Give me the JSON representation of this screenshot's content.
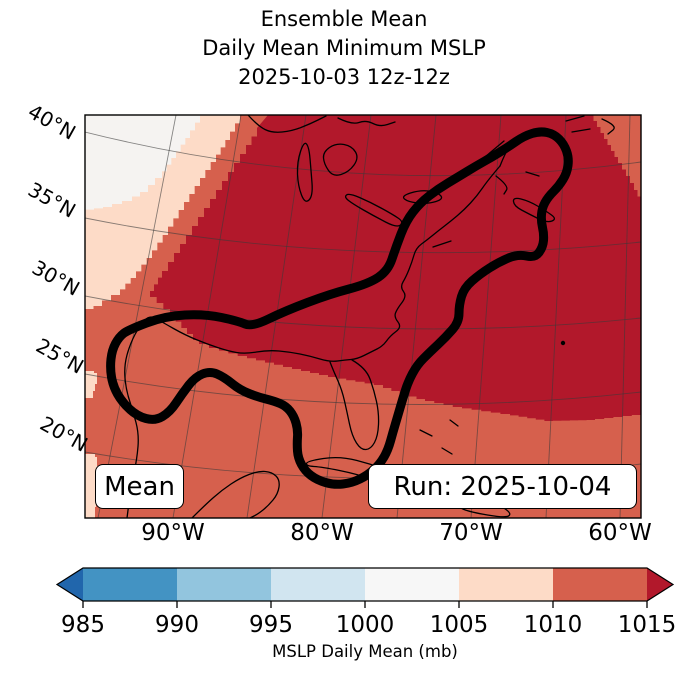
{
  "title": {
    "line1": "Ensemble Mean",
    "line2": "Daily Mean Minimum MSLP",
    "line3": "2025-10-03 12z-12z"
  },
  "map": {
    "lat_labels": [
      "40°N",
      "35°N",
      "30°N",
      "25°N",
      "20°N"
    ],
    "lon_labels": [
      "90°W",
      "80°W",
      "70°W",
      "60°W"
    ],
    "legend_left": "Mean",
    "legend_right": "Run: 2025-10-04",
    "fill_colors": {
      "over_1015": "#b2182b",
      "band_1010_1015": "#d6604d",
      "band_1005_1010": "#fddbc7",
      "band_1000_1005": "#f5f3f1"
    },
    "contour_color": "#000000",
    "gridline_color": "#3a3a3a",
    "coastline_color": "#000000"
  },
  "colorbar": {
    "ticks": [
      "985",
      "990",
      "995",
      "1000",
      "1005",
      "1010",
      "1015"
    ],
    "segment_colors": [
      "#4393c3",
      "#92c5de",
      "#d1e5f0",
      "#f7f7f7",
      "#fddbc7",
      "#d6604d"
    ],
    "under_color": "#2166ac",
    "over_color": "#b2182b",
    "label": "MSLP Daily Mean (mb)"
  },
  "chart_data": {
    "type": "heatmap",
    "subtype": "filled-contour-weather-map",
    "title": "Ensemble Mean | Daily Mean Minimum MSLP | 2025-10-03 12z-12z",
    "colorbar_label": "MSLP Daily Mean (mb)",
    "colorbar_levels_mb": [
      985,
      990,
      995,
      1000,
      1005,
      1010,
      1015
    ],
    "colorbar_colors": [
      "#2166ac",
      "#4393c3",
      "#92c5de",
      "#d1e5f0",
      "#f7f7f7",
      "#fddbc7",
      "#d6604d",
      "#b2182b"
    ],
    "lat_ticks": [
      "40°N",
      "35°N",
      "30°N",
      "25°N",
      "20°N"
    ],
    "lon_ticks": [
      "90°W",
      "80°W",
      "70°W",
      "60°W"
    ],
    "annotations": [
      "Mean",
      "Run: 2025-10-04"
    ],
    "depicted": {
      "region": "Eastern North America, Gulf of Mexico and western Atlantic",
      "field_max_band_mb": "greater than 1015 over interior/NE US and offshore Atlantic",
      "field_min_band_mb": "1000-1005 in far northwest corner",
      "thick_contour": "closed black contour looping from Texas/Gulf coast northeast along the US East Coast to Nova Scotia and back south to Cuba"
    }
  }
}
